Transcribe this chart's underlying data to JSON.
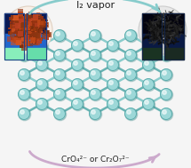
{
  "title_top": "I₂ vapor",
  "title_bottom": "CrO₄²⁻ or Cr₂O₇²⁻",
  "bg_color": "#f5f5f5",
  "arrow_color_top": "#88cccc",
  "arrow_color_bottom": "#ccaacc",
  "node_color_main": "#9dd8d8",
  "node_color_edge": "#5aacac",
  "link_color": "#7ec8c8",
  "link_color_dark": "#5aacac",
  "powder_left_colors": [
    "#8b3510",
    "#a03a0e",
    "#c04818",
    "#7a2e0c",
    "#d45520",
    "#b84020",
    "#903010"
  ],
  "powder_right_colors": [
    "#111111",
    "#1a1a1a",
    "#222222",
    "#0a0a0a",
    "#333333",
    "#2a2a2a",
    "#181818"
  ],
  "bl_top_color": "#0a1a55",
  "bl_mid_color": "#2266cc",
  "bl_bot_color": "#44cc88",
  "br_top_color": "#050515",
  "br_mid_color": "#0a1a44",
  "br_bot1_color": "#1a3322",
  "br_bot2_color": "#2a4433"
}
